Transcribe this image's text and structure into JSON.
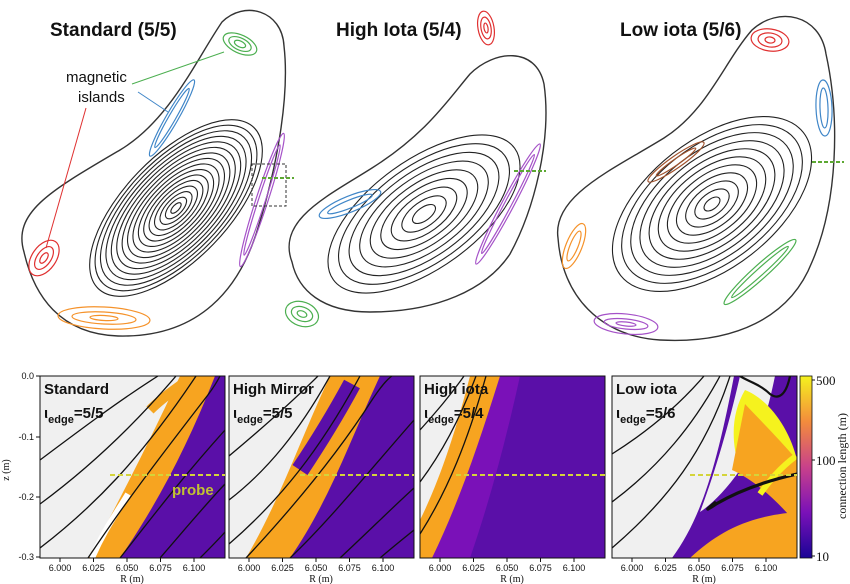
{
  "top": {
    "titles": [
      "Standard (5/5)",
      "High Iota (5/4)",
      "Low iota (5/6)"
    ],
    "annotation_line1": "magnetic",
    "annotation_line2": "islands"
  },
  "bottom": {
    "panels": [
      {
        "title": "Standard",
        "iota_symbol": "ι",
        "iota_sub": "edge",
        "iota_value": "=5/5"
      },
      {
        "title": "High Mirror",
        "iota_symbol": "ι",
        "iota_sub": "edge",
        "iota_value": "=5/5"
      },
      {
        "title": "High iota",
        "iota_symbol": "ι",
        "iota_sub": "edge",
        "iota_value": "=5/4"
      },
      {
        "title": "Low iota",
        "iota_symbol": "ι",
        "iota_sub": "edge",
        "iota_value": "=5/6"
      }
    ],
    "probe_label": "probe",
    "ylabel": "z (m)",
    "xlabel": "R (m)",
    "yticks": [
      "0.0",
      "-0.1",
      "-0.2",
      "-0.3"
    ],
    "xticks": [
      "6.000",
      "6.025",
      "6.050",
      "6.075",
      "6.100"
    ],
    "colorbar": {
      "label": "connection length (m)",
      "ticks": [
        "500",
        "100",
        "10"
      ],
      "scale": "log"
    }
  },
  "colors": {
    "island_green": "#4caf50",
    "island_blue": "#3f86c8",
    "island_red": "#e03030",
    "island_orange": "#f5922a",
    "island_purple": "#a552c8",
    "island_brown": "#a0522d",
    "probe_line": "#d4d43a",
    "low_connection": "#5a0fa8",
    "high_connection": "#f7a420"
  }
}
